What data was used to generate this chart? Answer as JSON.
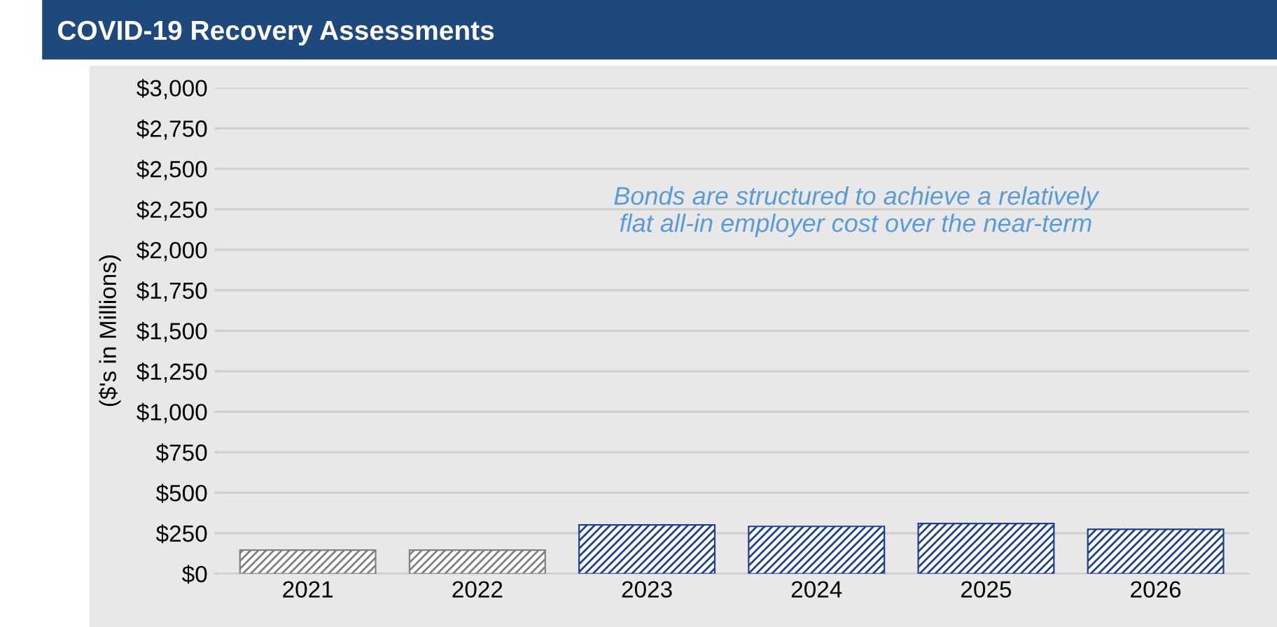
{
  "chart_data": {
    "type": "bar",
    "title": "COVID-19 Recovery Assessments",
    "ylabel": "($'s in Millions)",
    "categories": [
      "2021",
      "2022",
      "2023",
      "2024",
      "2025",
      "2026"
    ],
    "values": [
      146,
      146,
      301,
      292,
      310,
      274
    ],
    "colors": [
      "#808080",
      "#808080",
      "#1f3f8f",
      "#1f3f8f",
      "#1f3f8f",
      "#1f3f8f"
    ],
    "ylim": [
      0,
      3000
    ],
    "yticks": [
      {
        "value": 0,
        "label": "$0"
      },
      {
        "value": 250,
        "label": "$250"
      },
      {
        "value": 500,
        "label": "$500"
      },
      {
        "value": 750,
        "label": "$750"
      },
      {
        "value": 1000,
        "label": "$1,000"
      },
      {
        "value": 1250,
        "label": "$1,250"
      },
      {
        "value": 1500,
        "label": "$1,500"
      },
      {
        "value": 1750,
        "label": "$1,750"
      },
      {
        "value": 2000,
        "label": "$2,000"
      },
      {
        "value": 2250,
        "label": "$2,250"
      },
      {
        "value": 2500,
        "label": "$2,500"
      },
      {
        "value": 2750,
        "label": "$2,750"
      },
      {
        "value": 3000,
        "label": "$3,000"
      }
    ],
    "grid": "y",
    "annotations": [
      "Bonds are structured to achieve a relatively\nflat all-in employer cost over the near-term"
    ]
  }
}
